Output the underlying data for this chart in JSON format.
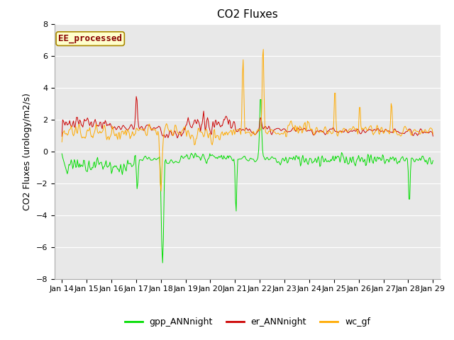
{
  "title": "CO2 Fluxes",
  "ylabel": "CO2 Fluxes (urology/m2/s)",
  "ylim": [
    -8,
    8
  ],
  "yticks": [
    -8,
    -6,
    -4,
    -2,
    0,
    2,
    4,
    6,
    8
  ],
  "fig_bg_color": "#ffffff",
  "plot_bg_color": "#e8e8e8",
  "grid_color": "#ffffff",
  "gpp_color": "#00dd00",
  "er_color": "#cc0000",
  "wc_color": "#ffaa00",
  "annotation_text": "EE_processed",
  "annotation_fc": "#ffffcc",
  "annotation_ec": "#aa8800",
  "annotation_tc": "#880000",
  "legend_labels": [
    "gpp_ANNnight",
    "er_ANNnight",
    "wc_gf"
  ],
  "title_fontsize": 11,
  "axis_fontsize": 9,
  "tick_fontsize": 8,
  "legend_fontsize": 9,
  "annotation_fontsize": 9
}
